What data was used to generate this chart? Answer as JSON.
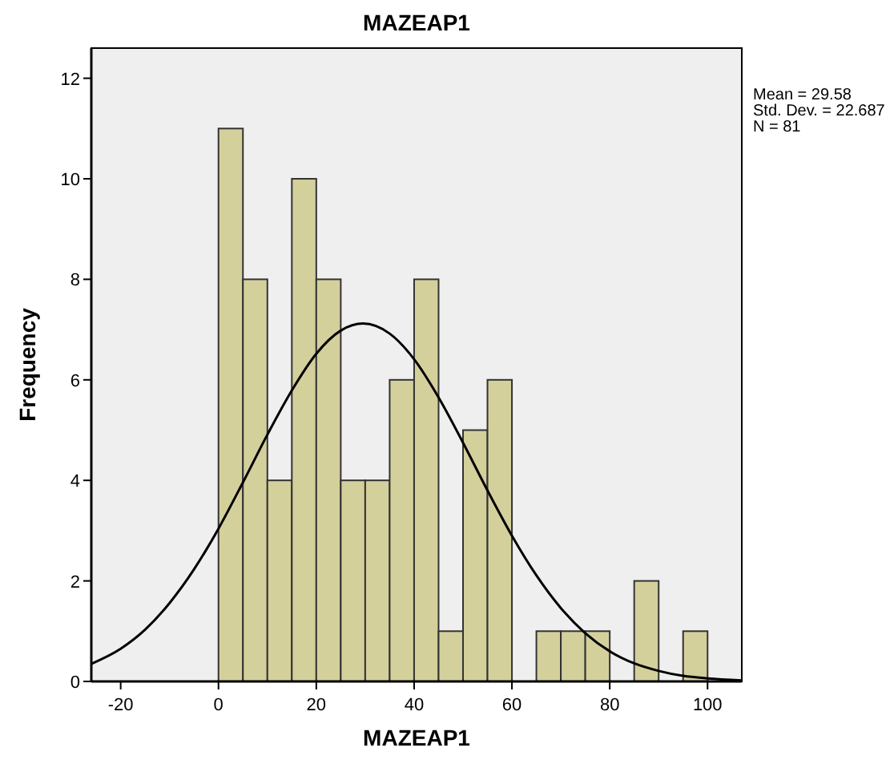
{
  "chart_data": {
    "type": "histogram",
    "title": "MAZEAP1",
    "xlabel": "MAZEAP1",
    "ylabel": "Frequency",
    "bins": [
      0,
      5,
      10,
      15,
      20,
      25,
      30,
      35,
      40,
      45,
      50,
      55,
      60,
      65,
      70,
      75,
      80,
      85,
      90,
      95,
      100
    ],
    "values": [
      11,
      8,
      4,
      10,
      8,
      4,
      4,
      6,
      8,
      1,
      5,
      6,
      0,
      1,
      1,
      1,
      0,
      2,
      0,
      1
    ],
    "color": "#d4d09c",
    "series": [
      {
        "type": "line",
        "color": "#000000",
        "x": [
          -26,
          -20,
          -15,
          -10,
          -5,
          0,
          5,
          10,
          15,
          20,
          25,
          29.58,
          35,
          40,
          45,
          50,
          55,
          60,
          65,
          70,
          75,
          80,
          85,
          90,
          95,
          100,
          107
        ],
        "values": [
          0.35,
          0.65,
          1.03,
          1.56,
          2.23,
          3.04,
          3.96,
          4.91,
          5.79,
          6.52,
          6.98,
          7.12,
          6.92,
          6.41,
          5.65,
          4.75,
          3.8,
          2.9,
          2.11,
          1.46,
          0.96,
          0.6,
          0.36,
          0.21,
          0.11,
          0.06,
          0.02
        ]
      }
    ],
    "annotations": [
      "Mean = 29.58",
      "Std. Dev. = 22.687",
      "N = 81"
    ],
    "xlim": [
      -26,
      107
    ],
    "xticks": [
      -20,
      0,
      20,
      40,
      60,
      80,
      100
    ],
    "ylim": [
      0,
      12.6
    ],
    "yticks": [
      0,
      2,
      4,
      6,
      8,
      10,
      12
    ],
    "grid": false,
    "marker": "none",
    "line_style": "solid"
  }
}
